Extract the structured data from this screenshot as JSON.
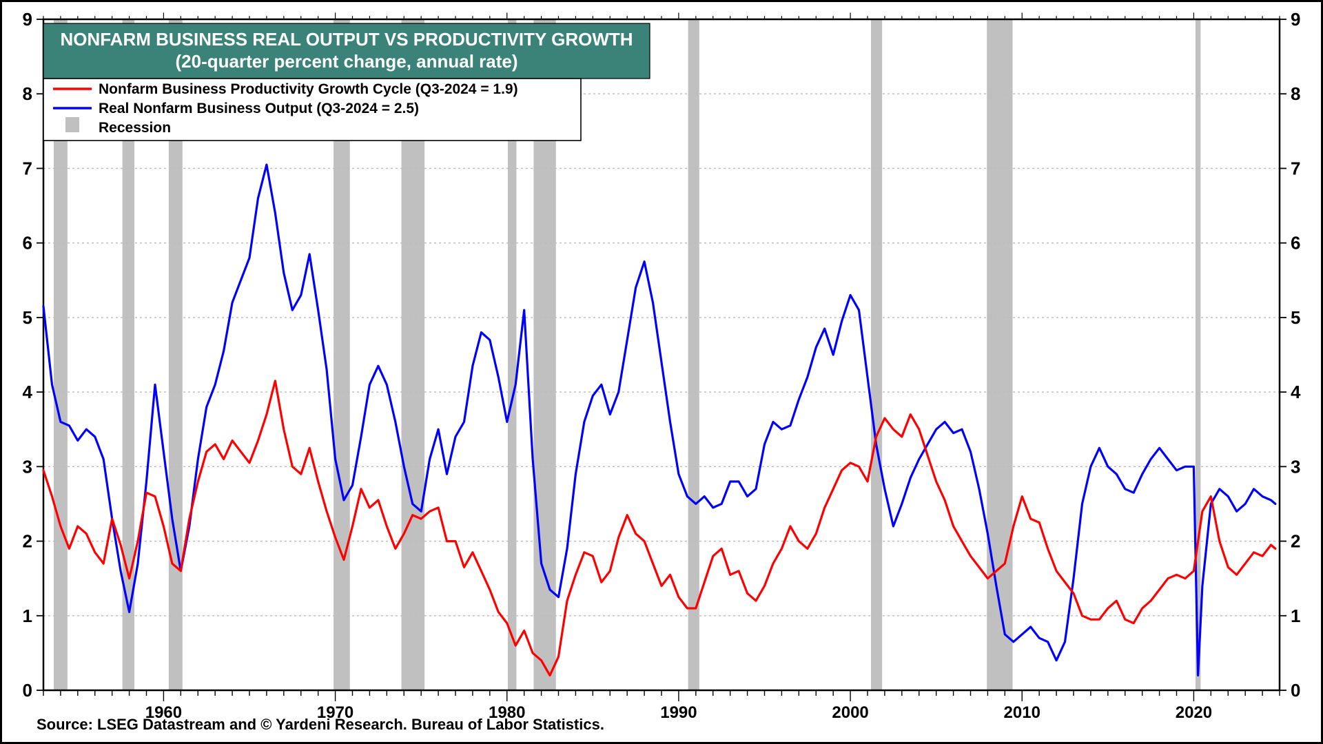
{
  "chart": {
    "type": "line",
    "title_line1": "NONFARM BUSINESS REAL OUTPUT VS PRODUCTIVITY GROWTH",
    "title_line2": "(20-quarter percent change, annual rate)",
    "title_bg": "#3b8379",
    "title_text_color": "#ffffff",
    "title_fontsize": 26,
    "legend": {
      "productivity_label": "Nonfarm Business Productivity Growth Cycle (Q3-2024 = 1.9)",
      "output_label": "Real Nonfarm Business Output  (Q3-2024 = 2.5)",
      "recession_label": "Recession",
      "fontsize": 21,
      "border_color": "#000000"
    },
    "source_text": "Source: LSEG Datastream and © Yardeni Research. Bureau of Labor Statistics.",
    "source_fontsize": 22,
    "x_axis": {
      "min": 1953,
      "max": 2025,
      "ticks": [
        1960,
        1970,
        1980,
        1990,
        2000,
        2010,
        2020
      ],
      "labels": [
        "1960",
        "1970",
        "1980",
        "1990",
        "2000",
        "2010",
        "2020"
      ],
      "minor_step": 1,
      "label_fontsize": 24
    },
    "y_axis": {
      "min": 0,
      "max": 9,
      "ticks": [
        0,
        1,
        2,
        3,
        4,
        5,
        6,
        7,
        8,
        9
      ],
      "labels": [
        "0",
        "1",
        "2",
        "3",
        "4",
        "5",
        "6",
        "7",
        "8",
        "9"
      ],
      "label_fontsize": 26,
      "grid_color": "#bbbbbb"
    },
    "colors": {
      "productivity_line": "#ff0000",
      "output_line": "#0000ff",
      "recession_fill": "#c0c0c0",
      "axis": "#000000",
      "bg": "#ffffff"
    },
    "line_width": 3.2,
    "recessions": [
      {
        "start": 1953.6,
        "end": 1954.4
      },
      {
        "start": 1957.6,
        "end": 1958.3
      },
      {
        "start": 1960.3,
        "end": 1961.1
      },
      {
        "start": 1969.9,
        "end": 1970.85
      },
      {
        "start": 1973.85,
        "end": 1975.2
      },
      {
        "start": 1980.05,
        "end": 1980.55
      },
      {
        "start": 1981.55,
        "end": 1982.85
      },
      {
        "start": 1990.55,
        "end": 1991.2
      },
      {
        "start": 2001.2,
        "end": 2001.85
      },
      {
        "start": 2007.95,
        "end": 2009.45
      },
      {
        "start": 2020.1,
        "end": 2020.4
      }
    ],
    "series_output": [
      [
        1953.0,
        5.15
      ],
      [
        1953.5,
        4.1
      ],
      [
        1954.0,
        3.6
      ],
      [
        1954.5,
        3.55
      ],
      [
        1955.0,
        3.35
      ],
      [
        1955.5,
        3.5
      ],
      [
        1956.0,
        3.4
      ],
      [
        1956.5,
        3.1
      ],
      [
        1957.0,
        2.3
      ],
      [
        1957.5,
        1.6
      ],
      [
        1958.0,
        1.05
      ],
      [
        1958.5,
        1.7
      ],
      [
        1959.0,
        2.8
      ],
      [
        1959.5,
        4.1
      ],
      [
        1960.0,
        3.2
      ],
      [
        1960.5,
        2.3
      ],
      [
        1961.0,
        1.6
      ],
      [
        1961.5,
        2.2
      ],
      [
        1962.0,
        3.1
      ],
      [
        1962.5,
        3.8
      ],
      [
        1963.0,
        4.1
      ],
      [
        1963.5,
        4.55
      ],
      [
        1964.0,
        5.2
      ],
      [
        1964.5,
        5.5
      ],
      [
        1965.0,
        5.8
      ],
      [
        1965.5,
        6.6
      ],
      [
        1966.0,
        7.05
      ],
      [
        1966.5,
        6.4
      ],
      [
        1967.0,
        5.6
      ],
      [
        1967.5,
        5.1
      ],
      [
        1968.0,
        5.3
      ],
      [
        1968.5,
        5.85
      ],
      [
        1969.0,
        5.1
      ],
      [
        1969.5,
        4.3
      ],
      [
        1970.0,
        3.1
      ],
      [
        1970.5,
        2.55
      ],
      [
        1971.0,
        2.75
      ],
      [
        1971.5,
        3.4
      ],
      [
        1972.0,
        4.1
      ],
      [
        1972.5,
        4.35
      ],
      [
        1973.0,
        4.1
      ],
      [
        1973.5,
        3.6
      ],
      [
        1974.0,
        3.0
      ],
      [
        1974.5,
        2.5
      ],
      [
        1975.0,
        2.4
      ],
      [
        1975.5,
        3.1
      ],
      [
        1976.0,
        3.5
      ],
      [
        1976.5,
        2.9
      ],
      [
        1977.0,
        3.4
      ],
      [
        1977.5,
        3.6
      ],
      [
        1978.0,
        4.35
      ],
      [
        1978.5,
        4.8
      ],
      [
        1979.0,
        4.7
      ],
      [
        1979.5,
        4.2
      ],
      [
        1980.0,
        3.6
      ],
      [
        1980.5,
        4.1
      ],
      [
        1981.0,
        5.1
      ],
      [
        1981.5,
        3.1
      ],
      [
        1982.0,
        1.7
      ],
      [
        1982.5,
        1.35
      ],
      [
        1983.0,
        1.25
      ],
      [
        1983.5,
        1.9
      ],
      [
        1984.0,
        2.9
      ],
      [
        1984.5,
        3.6
      ],
      [
        1985.0,
        3.95
      ],
      [
        1985.5,
        4.1
      ],
      [
        1986.0,
        3.7
      ],
      [
        1986.5,
        4.0
      ],
      [
        1987.0,
        4.7
      ],
      [
        1987.5,
        5.4
      ],
      [
        1988.0,
        5.75
      ],
      [
        1988.5,
        5.2
      ],
      [
        1989.0,
        4.4
      ],
      [
        1989.5,
        3.6
      ],
      [
        1990.0,
        2.9
      ],
      [
        1990.5,
        2.6
      ],
      [
        1991.0,
        2.5
      ],
      [
        1991.5,
        2.6
      ],
      [
        1992.0,
        2.45
      ],
      [
        1992.5,
        2.5
      ],
      [
        1993.0,
        2.8
      ],
      [
        1993.5,
        2.8
      ],
      [
        1994.0,
        2.6
      ],
      [
        1994.5,
        2.7
      ],
      [
        1995.0,
        3.3
      ],
      [
        1995.5,
        3.6
      ],
      [
        1996.0,
        3.5
      ],
      [
        1996.5,
        3.55
      ],
      [
        1997.0,
        3.9
      ],
      [
        1997.5,
        4.2
      ],
      [
        1998.0,
        4.6
      ],
      [
        1998.5,
        4.85
      ],
      [
        1999.0,
        4.5
      ],
      [
        1999.5,
        4.95
      ],
      [
        2000.0,
        5.3
      ],
      [
        2000.5,
        5.1
      ],
      [
        2001.0,
        4.2
      ],
      [
        2001.5,
        3.3
      ],
      [
        2002.0,
        2.7
      ],
      [
        2002.5,
        2.2
      ],
      [
        2003.0,
        2.5
      ],
      [
        2003.5,
        2.85
      ],
      [
        2004.0,
        3.1
      ],
      [
        2004.5,
        3.3
      ],
      [
        2005.0,
        3.5
      ],
      [
        2005.5,
        3.6
      ],
      [
        2006.0,
        3.45
      ],
      [
        2006.5,
        3.5
      ],
      [
        2007.0,
        3.2
      ],
      [
        2007.5,
        2.7
      ],
      [
        2008.0,
        2.1
      ],
      [
        2008.5,
        1.4
      ],
      [
        2009.0,
        0.75
      ],
      [
        2009.5,
        0.65
      ],
      [
        2010.0,
        0.75
      ],
      [
        2010.5,
        0.85
      ],
      [
        2011.0,
        0.7
      ],
      [
        2011.5,
        0.65
      ],
      [
        2012.0,
        0.4
      ],
      [
        2012.5,
        0.65
      ],
      [
        2013.0,
        1.5
      ],
      [
        2013.5,
        2.5
      ],
      [
        2014.0,
        3.0
      ],
      [
        2014.5,
        3.25
      ],
      [
        2015.0,
        3.0
      ],
      [
        2015.5,
        2.9
      ],
      [
        2016.0,
        2.7
      ],
      [
        2016.5,
        2.65
      ],
      [
        2017.0,
        2.9
      ],
      [
        2017.5,
        3.1
      ],
      [
        2018.0,
        3.25
      ],
      [
        2018.5,
        3.1
      ],
      [
        2019.0,
        2.95
      ],
      [
        2019.5,
        3.0
      ],
      [
        2020.0,
        3.0
      ],
      [
        2020.25,
        0.2
      ],
      [
        2020.5,
        1.4
      ],
      [
        2021.0,
        2.5
      ],
      [
        2021.5,
        2.7
      ],
      [
        2022.0,
        2.6
      ],
      [
        2022.5,
        2.4
      ],
      [
        2023.0,
        2.5
      ],
      [
        2023.5,
        2.7
      ],
      [
        2024.0,
        2.6
      ],
      [
        2024.5,
        2.55
      ],
      [
        2024.75,
        2.5
      ]
    ],
    "series_productivity": [
      [
        1953.0,
        2.95
      ],
      [
        1953.5,
        2.6
      ],
      [
        1954.0,
        2.2
      ],
      [
        1954.5,
        1.9
      ],
      [
        1955.0,
        2.2
      ],
      [
        1955.5,
        2.1
      ],
      [
        1956.0,
        1.85
      ],
      [
        1956.5,
        1.7
      ],
      [
        1957.0,
        2.3
      ],
      [
        1957.5,
        1.95
      ],
      [
        1958.0,
        1.5
      ],
      [
        1958.5,
        2.0
      ],
      [
        1959.0,
        2.65
      ],
      [
        1959.5,
        2.6
      ],
      [
        1960.0,
        2.2
      ],
      [
        1960.5,
        1.7
      ],
      [
        1961.0,
        1.6
      ],
      [
        1961.5,
        2.3
      ],
      [
        1962.0,
        2.8
      ],
      [
        1962.5,
        3.2
      ],
      [
        1963.0,
        3.3
      ],
      [
        1963.5,
        3.1
      ],
      [
        1964.0,
        3.35
      ],
      [
        1964.5,
        3.2
      ],
      [
        1965.0,
        3.05
      ],
      [
        1965.5,
        3.35
      ],
      [
        1966.0,
        3.7
      ],
      [
        1966.5,
        4.15
      ],
      [
        1967.0,
        3.5
      ],
      [
        1967.5,
        3.0
      ],
      [
        1968.0,
        2.9
      ],
      [
        1968.5,
        3.25
      ],
      [
        1969.0,
        2.8
      ],
      [
        1969.5,
        2.4
      ],
      [
        1970.0,
        2.05
      ],
      [
        1970.5,
        1.75
      ],
      [
        1971.0,
        2.2
      ],
      [
        1971.5,
        2.7
      ],
      [
        1972.0,
        2.45
      ],
      [
        1972.5,
        2.55
      ],
      [
        1973.0,
        2.2
      ],
      [
        1973.5,
        1.9
      ],
      [
        1974.0,
        2.1
      ],
      [
        1974.5,
        2.35
      ],
      [
        1975.0,
        2.3
      ],
      [
        1975.5,
        2.4
      ],
      [
        1976.0,
        2.45
      ],
      [
        1976.5,
        2.0
      ],
      [
        1977.0,
        2.0
      ],
      [
        1977.5,
        1.65
      ],
      [
        1978.0,
        1.85
      ],
      [
        1978.5,
        1.6
      ],
      [
        1979.0,
        1.35
      ],
      [
        1979.5,
        1.05
      ],
      [
        1980.0,
        0.9
      ],
      [
        1980.5,
        0.6
      ],
      [
        1981.0,
        0.8
      ],
      [
        1981.5,
        0.5
      ],
      [
        1982.0,
        0.4
      ],
      [
        1982.5,
        0.2
      ],
      [
        1983.0,
        0.45
      ],
      [
        1983.5,
        1.2
      ],
      [
        1984.0,
        1.55
      ],
      [
        1984.5,
        1.85
      ],
      [
        1985.0,
        1.8
      ],
      [
        1985.5,
        1.45
      ],
      [
        1986.0,
        1.6
      ],
      [
        1986.5,
        2.05
      ],
      [
        1987.0,
        2.35
      ],
      [
        1987.5,
        2.1
      ],
      [
        1988.0,
        2.0
      ],
      [
        1988.5,
        1.7
      ],
      [
        1989.0,
        1.4
      ],
      [
        1989.5,
        1.55
      ],
      [
        1990.0,
        1.25
      ],
      [
        1990.5,
        1.1
      ],
      [
        1991.0,
        1.1
      ],
      [
        1991.5,
        1.45
      ],
      [
        1992.0,
        1.8
      ],
      [
        1992.5,
        1.9
      ],
      [
        1993.0,
        1.55
      ],
      [
        1993.5,
        1.6
      ],
      [
        1994.0,
        1.3
      ],
      [
        1994.5,
        1.2
      ],
      [
        1995.0,
        1.4
      ],
      [
        1995.5,
        1.7
      ],
      [
        1996.0,
        1.9
      ],
      [
        1996.5,
        2.2
      ],
      [
        1997.0,
        2.0
      ],
      [
        1997.5,
        1.9
      ],
      [
        1998.0,
        2.1
      ],
      [
        1998.5,
        2.45
      ],
      [
        1999.0,
        2.7
      ],
      [
        1999.5,
        2.95
      ],
      [
        2000.0,
        3.05
      ],
      [
        2000.5,
        3.0
      ],
      [
        2001.0,
        2.8
      ],
      [
        2001.5,
        3.4
      ],
      [
        2002.0,
        3.65
      ],
      [
        2002.5,
        3.5
      ],
      [
        2003.0,
        3.4
      ],
      [
        2003.5,
        3.7
      ],
      [
        2004.0,
        3.5
      ],
      [
        2004.5,
        3.15
      ],
      [
        2005.0,
        2.8
      ],
      [
        2005.5,
        2.55
      ],
      [
        2006.0,
        2.2
      ],
      [
        2006.5,
        2.0
      ],
      [
        2007.0,
        1.8
      ],
      [
        2007.5,
        1.65
      ],
      [
        2008.0,
        1.5
      ],
      [
        2008.5,
        1.6
      ],
      [
        2009.0,
        1.7
      ],
      [
        2009.5,
        2.2
      ],
      [
        2010.0,
        2.6
      ],
      [
        2010.5,
        2.3
      ],
      [
        2011.0,
        2.25
      ],
      [
        2011.5,
        1.9
      ],
      [
        2012.0,
        1.6
      ],
      [
        2012.5,
        1.45
      ],
      [
        2013.0,
        1.3
      ],
      [
        2013.5,
        1.0
      ],
      [
        2014.0,
        0.95
      ],
      [
        2014.5,
        0.95
      ],
      [
        2015.0,
        1.1
      ],
      [
        2015.5,
        1.2
      ],
      [
        2016.0,
        0.95
      ],
      [
        2016.5,
        0.9
      ],
      [
        2017.0,
        1.1
      ],
      [
        2017.5,
        1.2
      ],
      [
        2018.0,
        1.35
      ],
      [
        2018.5,
        1.5
      ],
      [
        2019.0,
        1.55
      ],
      [
        2019.5,
        1.5
      ],
      [
        2020.0,
        1.6
      ],
      [
        2020.5,
        2.4
      ],
      [
        2021.0,
        2.6
      ],
      [
        2021.5,
        2.0
      ],
      [
        2022.0,
        1.65
      ],
      [
        2022.5,
        1.55
      ],
      [
        2023.0,
        1.7
      ],
      [
        2023.5,
        1.85
      ],
      [
        2024.0,
        1.8
      ],
      [
        2024.5,
        1.95
      ],
      [
        2024.75,
        1.9
      ]
    ]
  }
}
